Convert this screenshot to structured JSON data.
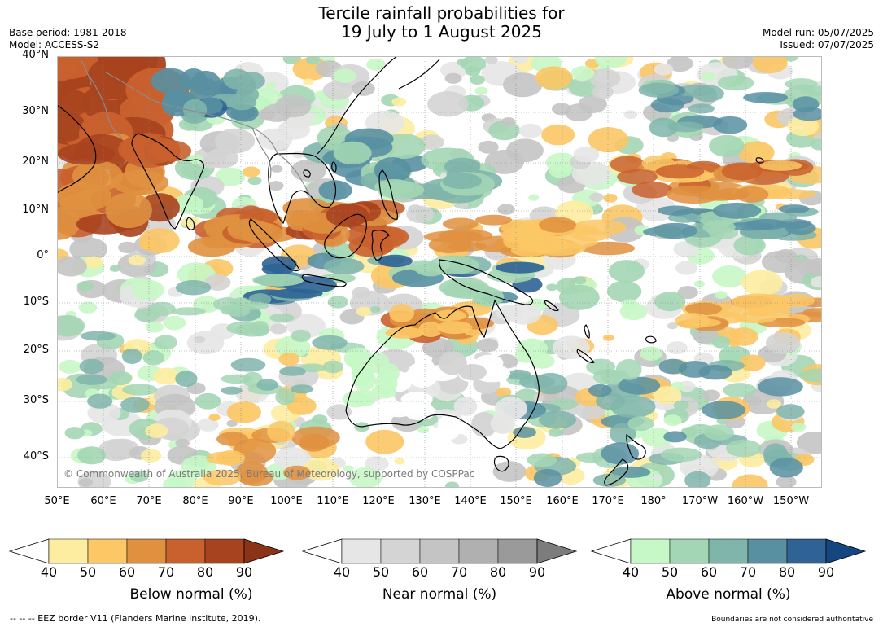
{
  "header": {
    "title_line1": "Tercile rainfall probabilities for",
    "title_line2": "19 July to 1 August 2025",
    "base_period": "Base period: 1981-2018",
    "model": "Model: ACCESS-S2",
    "model_run": "Model run: 05/07/2025",
    "issued": "Issued: 07/07/2025"
  },
  "map": {
    "lat_labels": [
      "40°N",
      "30°N",
      "20°N",
      "10°N",
      "0°",
      "10°S",
      "20°S",
      "30°S",
      "40°S"
    ],
    "lon_labels": [
      "50°E",
      "60°E",
      "70°E",
      "80°E",
      "90°E",
      "100°E",
      "110°E",
      "120°E",
      "130°E",
      "140°E",
      "150°E",
      "160°E",
      "170°E",
      "180°",
      "170°W",
      "160°W",
      "150°W"
    ],
    "copyright": "© Commonwealth of Australia 2025, Bureau of Meteorology, supported by COSPPac",
    "colors": {
      "below": [
        "#fdeda1",
        "#fcc765",
        "#e0913f",
        "#c9612e",
        "#a8431f",
        "#8a3317"
      ],
      "near": [
        "#e6e6e6",
        "#d4d4d4",
        "#c4c4c4",
        "#b0b0b0",
        "#9a9a9a",
        "#7c7c7c"
      ],
      "above": [
        "#c6f7c6",
        "#a3d6b4",
        "#7fb5ab",
        "#5890a2",
        "#2f6395",
        "#14477f"
      ],
      "land_outline": "#000000",
      "border": "#8c8c8c"
    }
  },
  "colorbars": [
    {
      "label": "Below normal (%)",
      "ticks": [
        "40",
        "50",
        "60",
        "70",
        "80",
        "90"
      ]
    },
    {
      "label": "Near normal (%)",
      "ticks": [
        "40",
        "50",
        "60",
        "70",
        "80",
        "90"
      ]
    },
    {
      "label": "Above normal (%)",
      "ticks": [
        "40",
        "50",
        "60",
        "70",
        "80",
        "90"
      ]
    }
  ],
  "footer": {
    "eez": "--  --  -- EEZ border V11 (Flanders Marine Institute, 2019).",
    "boundaries": "Boundaries are not considered authoritative"
  }
}
